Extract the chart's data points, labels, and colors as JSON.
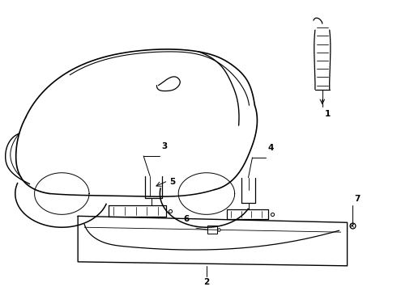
{
  "bg_color": "#ffffff",
  "line_color": "#000000",
  "fig_width": 4.9,
  "fig_height": 3.6,
  "dpi": 100,
  "label_fontsize": 7.5
}
